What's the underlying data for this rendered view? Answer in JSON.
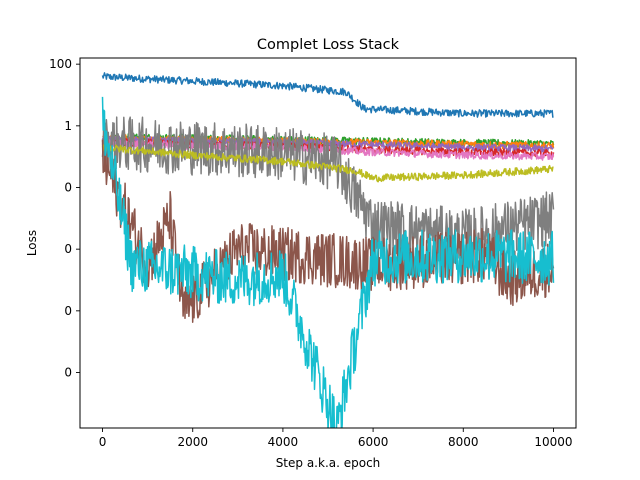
{
  "chart_data": {
    "type": "line",
    "title": "Complet Loss Stack",
    "xlabel": "Step a.k.a. epoch",
    "ylabel": "Loss",
    "scale_y": "log",
    "xlim": [
      -500,
      10500
    ],
    "x_ticks": [
      0,
      2000,
      4000,
      6000,
      8000,
      10000
    ],
    "x_tick_labels": [
      "0",
      "2000",
      "4000",
      "6000",
      "8000",
      "10000"
    ],
    "y_tick_exponents": [
      2,
      0,
      -2,
      -4,
      -6,
      -8
    ],
    "y_tick_labels": [
      "100",
      "1",
      "0",
      "0",
      "0",
      "0"
    ],
    "ylim_log10": [
      -9.8,
      2.2
    ],
    "grid": false,
    "legend": "none",
    "series": [
      {
        "color": "#1f77b4",
        "values": [
          [
            0,
            1.6
          ],
          [
            600,
            1.55
          ],
          [
            2000,
            1.45
          ],
          [
            4000,
            1.3
          ],
          [
            5400,
            1.1
          ],
          [
            5800,
            0.55
          ],
          [
            8000,
            0.4
          ],
          [
            10000,
            0.4
          ]
        ]
      },
      {
        "color": "#2ca02c",
        "values": [
          [
            0,
            -0.35
          ],
          [
            2000,
            -0.4
          ],
          [
            4000,
            -0.45
          ],
          [
            6000,
            -0.5
          ],
          [
            8000,
            -0.55
          ],
          [
            10000,
            -0.58
          ]
        ]
      },
      {
        "color": "#ff7f0e",
        "values": [
          [
            0,
            -0.4
          ],
          [
            2000,
            -0.45
          ],
          [
            4000,
            -0.5
          ],
          [
            6000,
            -0.55
          ],
          [
            8000,
            -0.6
          ],
          [
            10000,
            -0.65
          ]
        ]
      },
      {
        "color": "#9467bd",
        "values": [
          [
            0,
            -0.45
          ],
          [
            2000,
            -0.5
          ],
          [
            4000,
            -0.55
          ],
          [
            6000,
            -0.62
          ],
          [
            8000,
            -0.7
          ],
          [
            10000,
            -0.75
          ]
        ]
      },
      {
        "color": "#d62728",
        "values": [
          [
            0,
            -0.5
          ],
          [
            2000,
            -0.6
          ],
          [
            4000,
            -0.65
          ],
          [
            6000,
            -0.78
          ],
          [
            8000,
            -0.85
          ],
          [
            10000,
            -0.9
          ]
        ]
      },
      {
        "color": "#e377c2",
        "values": [
          [
            0,
            -0.55
          ],
          [
            2000,
            -0.65
          ],
          [
            4000,
            -0.7
          ],
          [
            6000,
            -0.85
          ],
          [
            8000,
            -0.95
          ],
          [
            10000,
            -1.0
          ]
        ]
      },
      {
        "color": "#7f7f7f",
        "values": [
          [
            0,
            -0.55
          ],
          [
            2000,
            -0.7
          ],
          [
            4000,
            -0.9
          ],
          [
            5200,
            -1.2
          ],
          [
            6000,
            -3.2
          ],
          [
            8000,
            -3.6
          ],
          [
            10000,
            -3.0
          ]
        ]
      },
      {
        "color": "#bcbd22",
        "values": [
          [
            0,
            -0.7
          ],
          [
            2000,
            -0.95
          ],
          [
            4000,
            -1.15
          ],
          [
            5600,
            -1.45
          ],
          [
            6000,
            -1.7
          ],
          [
            8000,
            -1.6
          ],
          [
            10000,
            -1.4
          ]
        ]
      },
      {
        "color": "#8c564b",
        "values": [
          [
            0,
            -1.0
          ],
          [
            1000,
            -4.5
          ],
          [
            1500,
            -3.0
          ],
          [
            1800,
            -6.0
          ],
          [
            3000,
            -4.0
          ],
          [
            6000,
            -4.5
          ],
          [
            8500,
            -4.2
          ],
          [
            9000,
            -5.0
          ],
          [
            10000,
            -4.6
          ]
        ]
      },
      {
        "color": "#17becf",
        "values": [
          [
            0,
            0.2
          ],
          [
            650,
            -4.5
          ],
          [
            3000,
            -5.0
          ],
          [
            4000,
            -4.8
          ],
          [
            5200,
            -9.8
          ],
          [
            6000,
            -4.3
          ],
          [
            8000,
            -4.2
          ],
          [
            10000,
            -4.3
          ]
        ]
      }
    ]
  }
}
